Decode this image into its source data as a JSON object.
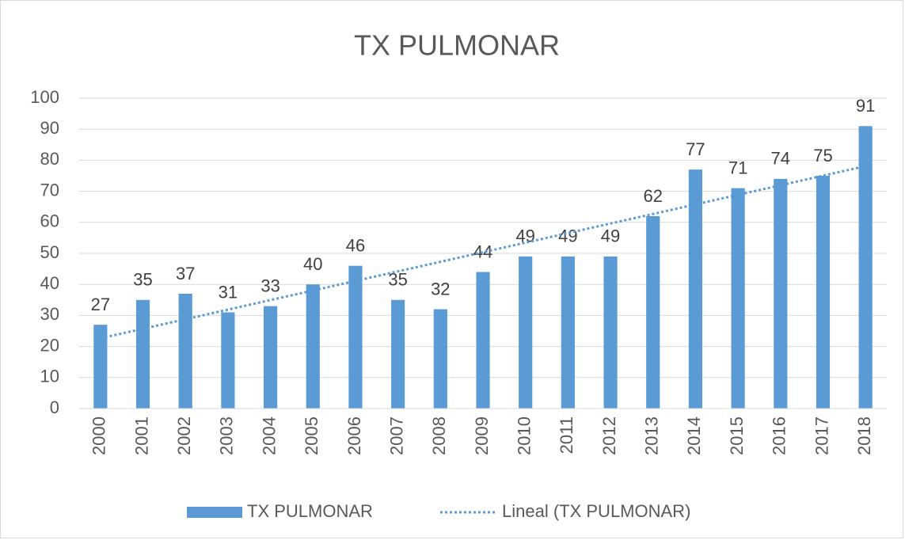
{
  "chart_data": {
    "type": "bar",
    "title": "TX PULMONAR",
    "categories": [
      "2000",
      "2001",
      "2002",
      "2003",
      "2004",
      "2005",
      "2006",
      "2007",
      "2008",
      "2009",
      "2010",
      "2011",
      "2012",
      "2013",
      "2014",
      "2015",
      "2016",
      "2017",
      "2018"
    ],
    "series": [
      {
        "name": "TX PULMONAR",
        "color": "#5b9bd5",
        "values": [
          27,
          35,
          37,
          31,
          33,
          40,
          46,
          35,
          32,
          44,
          49,
          49,
          49,
          62,
          77,
          71,
          74,
          75,
          91
        ]
      }
    ],
    "trendline": {
      "name": "Lineal (TX PULMONAR)",
      "fit": "linear",
      "color": "#5b9bd5",
      "style": "dotted"
    },
    "ylim": [
      0,
      100
    ],
    "yticks": [
      0,
      10,
      20,
      30,
      40,
      50,
      60,
      70,
      80,
      90,
      100
    ],
    "grid": true,
    "data_labels": true,
    "legend": "bottom"
  }
}
